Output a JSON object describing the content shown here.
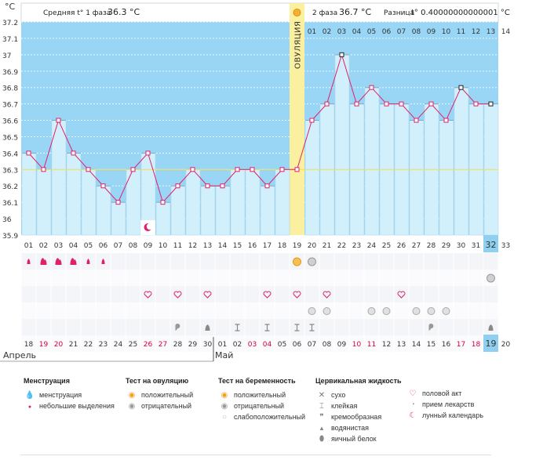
{
  "header": {
    "y_unit": "°C",
    "phase1_label": "Средняя t° 1 фаза",
    "phase1_value": "36.3 °C",
    "phase2_label": "2 фаза",
    "phase2_value": "36.7 °C",
    "diff_label": "Разница",
    "diff_value": "t° 0.40000000000001 °C"
  },
  "ovulation_label": "ОВУЛЯЦИЯ",
  "colors": {
    "phase1_bar": "#d2effc",
    "phase2_bg": "#99d6f5",
    "line": "#e0206a",
    "ovulation": "#fbefa0",
    "avg_line": "#f0e060",
    "red_day": "#d0003a"
  },
  "chart_data": {
    "type": "line",
    "x_cycle_days": [
      "01",
      "02",
      "03",
      "04",
      "05",
      "06",
      "07",
      "08",
      "09",
      "10",
      "11",
      "12",
      "13",
      "14",
      "15",
      "16",
      "17",
      "18",
      "19",
      "20",
      "21",
      "22",
      "23",
      "24",
      "25",
      "26",
      "27",
      "28",
      "29",
      "30",
      "31",
      "32",
      "33"
    ],
    "top_day_numbers": [
      "01",
      "02",
      "03",
      "04",
      "05",
      "06",
      "07",
      "08",
      "09",
      "10",
      "11",
      "12",
      "13",
      "14"
    ],
    "temperatures": [
      36.4,
      36.3,
      36.6,
      36.4,
      36.3,
      36.2,
      36.1,
      36.3,
      36.4,
      36.1,
      36.2,
      36.3,
      36.2,
      36.2,
      36.3,
      36.3,
      36.2,
      36.3,
      36.3,
      36.6,
      36.7,
      37.0,
      36.7,
      36.8,
      36.7,
      36.7,
      36.6,
      36.7,
      36.6,
      36.8,
      36.7,
      36.7
    ],
    "highlight_points_black": [
      22,
      30,
      32
    ],
    "y_ticks": [
      "35.9",
      "36",
      "36.1",
      "36.2",
      "36.3",
      "36.4",
      "36.5",
      "36.6",
      "36.7",
      "36.8",
      "36.9",
      "37",
      "37.1",
      "37.2"
    ],
    "ylim": [
      35.9,
      37.2
    ],
    "average_line": 36.3,
    "ovulation_day": 19,
    "current_day": 32,
    "calendar_dates": [
      "18",
      "19",
      "20",
      "21",
      "22",
      "23",
      "24",
      "25",
      "26",
      "27",
      "28",
      "29",
      "30",
      "01",
      "02",
      "03",
      "04",
      "05",
      "06",
      "07",
      "08",
      "09",
      "10",
      "11",
      "12",
      "13",
      "14",
      "15",
      "16",
      "17",
      "18",
      "19",
      "20"
    ],
    "red_date_indices": [
      1,
      2,
      8,
      9,
      15,
      16,
      22,
      23,
      29,
      30
    ],
    "months": [
      {
        "name": "Апрель",
        "start_index": 0
      },
      {
        "name": "Май",
        "start_index": 13
      }
    ]
  },
  "symptom_rows": {
    "menstruation": [
      [
        0,
        "small"
      ],
      [
        1,
        "heavy"
      ],
      [
        2,
        "heavy"
      ],
      [
        3,
        "heavy"
      ],
      [
        4,
        "small"
      ],
      [
        5,
        "small"
      ]
    ],
    "ovulation_test": [
      [
        18,
        "pos"
      ],
      [
        19,
        "neg"
      ]
    ],
    "pregnancy_test": [
      [
        31,
        "neg"
      ]
    ],
    "sex": [
      9,
      11,
      13,
      17,
      19,
      21,
      26
    ],
    "medicine": [
      20,
      21,
      24,
      25,
      27,
      28,
      29
    ],
    "fluid": [
      [
        10,
        "cream"
      ],
      [
        12,
        "watery"
      ],
      [
        14,
        "sticky"
      ],
      [
        16,
        "sticky"
      ],
      [
        18,
        "sticky"
      ],
      [
        19,
        "sticky"
      ],
      [
        27,
        "cream"
      ],
      [
        31,
        "watery"
      ]
    ],
    "moon": [
      9
    ]
  },
  "legend": {
    "groups": [
      {
        "title": "Менструация",
        "items": [
          {
            "icon": "menstruation-icon",
            "label": "менструация"
          },
          {
            "icon": "spotting-icon",
            "label": "небольшие выделения"
          }
        ]
      },
      {
        "title": "Тест на овуляцию",
        "items": [
          {
            "icon": "positive-test-icon",
            "label": "положительный"
          },
          {
            "icon": "negative-test-icon",
            "label": "отрицательный"
          }
        ]
      },
      {
        "title": "Тест на беременность",
        "items": [
          {
            "icon": "positive-test-icon",
            "label": "положительный"
          },
          {
            "icon": "negative-test-icon",
            "label": "отрицательный"
          },
          {
            "icon": "weak-positive-icon",
            "label": "слабоположительный"
          }
        ]
      },
      {
        "title": "Цервикальная жидкость",
        "items": [
          {
            "icon": "dry-icon",
            "label": "сухо"
          },
          {
            "icon": "sticky-icon",
            "label": "клейкая"
          },
          {
            "icon": "creamy-icon",
            "label": "кремообразная"
          },
          {
            "icon": "watery-icon",
            "label": "водянистая"
          },
          {
            "icon": "egg-white-icon",
            "label": "яичный белок"
          }
        ]
      },
      {
        "title": "",
        "items": [
          {
            "icon": "heart-icon",
            "label": "половой акт"
          },
          {
            "icon": "pill-icon",
            "label": "прием лекарств"
          },
          {
            "icon": "moon-icon",
            "label": "лунный календарь"
          }
        ]
      }
    ]
  }
}
